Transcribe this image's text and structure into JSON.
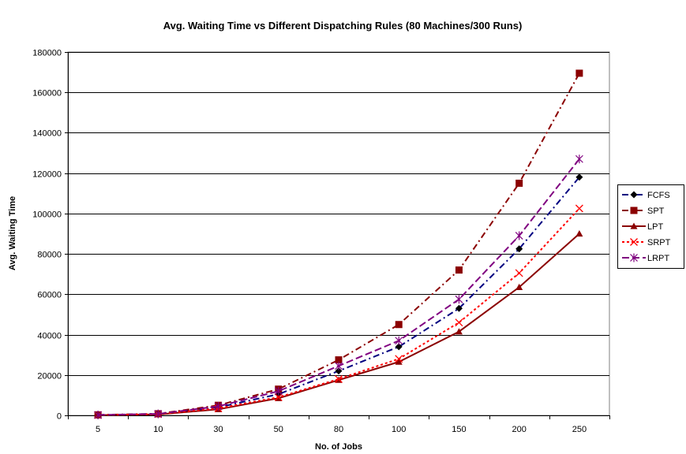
{
  "chart_data": {
    "type": "line",
    "title": "Avg. Waiting Time vs Different Dispatching Rules (80 Machines/300 Runs)",
    "xlabel": "No. of Jobs",
    "ylabel": "Avg. Waiting Time",
    "categories": [
      "5",
      "10",
      "30",
      "50",
      "80",
      "100",
      "150",
      "200",
      "250"
    ],
    "ylim": [
      0,
      180000
    ],
    "yticks": [
      0,
      20000,
      40000,
      60000,
      80000,
      100000,
      120000,
      140000,
      160000,
      180000
    ],
    "ytick_labels": [
      "0",
      "20000",
      "40000",
      "60000",
      "80000",
      "100000",
      "120000",
      "140000",
      "160000",
      "180000"
    ],
    "grid": "horizontal",
    "legend_position": "right",
    "series": [
      {
        "name": "FCFS",
        "values": [
          200,
          700,
          4000,
          10500,
          22000,
          34000,
          53000,
          82500,
          118000
        ],
        "color": "#000080",
        "marker": "diamond",
        "marker_color": "#000000",
        "line_style": "dash-dot"
      },
      {
        "name": "SPT",
        "values": [
          250,
          800,
          5000,
          13000,
          27500,
          45000,
          72000,
          115000,
          169500
        ],
        "color": "#8B0000",
        "marker": "square",
        "marker_color": "#8B0000",
        "line_style": "dash-dot"
      },
      {
        "name": "LPT",
        "values": [
          150,
          500,
          3000,
          8500,
          17500,
          26500,
          41500,
          63500,
          90000
        ],
        "color": "#8B0000",
        "marker": "triangle",
        "marker_color": "#8B0000",
        "line_style": "solid"
      },
      {
        "name": "SRPT",
        "values": [
          150,
          600,
          3500,
          9000,
          18000,
          28000,
          46000,
          70500,
          102500
        ],
        "color": "#FF0000",
        "marker": "x",
        "marker_color": "#FF0000",
        "line_style": "dotted"
      },
      {
        "name": "LRPT",
        "values": [
          200,
          750,
          4500,
          12000,
          24500,
          37000,
          57500,
          89000,
          127000
        ],
        "color": "#800080",
        "marker": "asterisk",
        "marker_color": "#800080",
        "line_style": "dash"
      }
    ]
  }
}
